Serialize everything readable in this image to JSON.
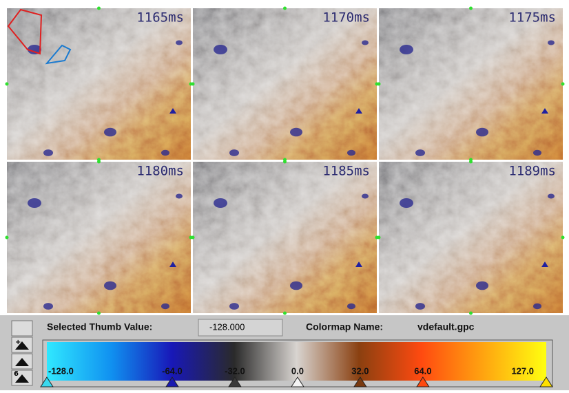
{
  "panels": [
    {
      "label": "1165ms"
    },
    {
      "label": "1170ms"
    },
    {
      "label": "1175ms"
    },
    {
      "label": "1180ms"
    },
    {
      "label": "1185ms"
    },
    {
      "label": "1189ms"
    }
  ],
  "colormap_editor": {
    "selected_thumb_label": "Selected Thumb Value:",
    "selected_thumb_value": "-128.000",
    "colormap_name_label": "Colormap Name:",
    "colormap_name": "vdefault.gpc",
    "tool_buttons": [
      "+",
      "6"
    ],
    "thumbs": [
      {
        "label": "-128.0",
        "color": "#3ad8ee"
      },
      {
        "label": "-64.0",
        "color": "#1a1ab0"
      },
      {
        "label": "-32.0",
        "color": "#3a3a3a"
      },
      {
        "label": "0.0",
        "color": "#f4f4f4"
      },
      {
        "label": "32.0",
        "color": "#7a3a10"
      },
      {
        "label": "64.0",
        "color": "#ff4a10"
      },
      {
        "label": "127.0",
        "color": "#ffe000"
      }
    ]
  }
}
